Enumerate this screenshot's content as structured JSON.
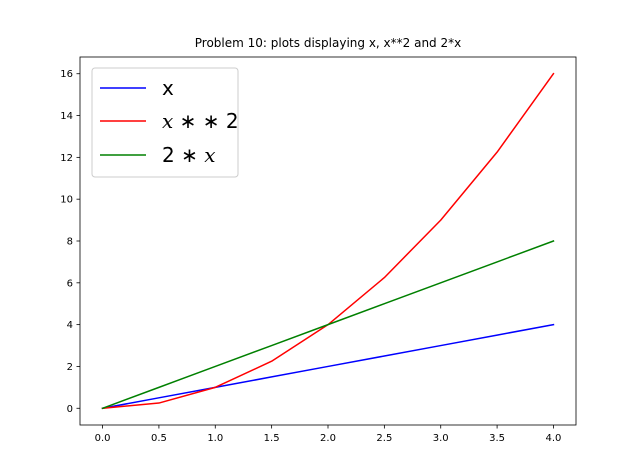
{
  "chart_data": {
    "type": "line",
    "title": "Problem 10: plots displaying x, x**2 and 2*x",
    "xlabel": "",
    "ylabel": "",
    "x": [
      0.0,
      0.5,
      1.0,
      1.5,
      2.0,
      2.5,
      3.0,
      3.5,
      4.0
    ],
    "series": [
      {
        "name": "x",
        "color": "#0000ff",
        "values": [
          0.0,
          0.5,
          1.0,
          1.5,
          2.0,
          2.5,
          3.0,
          3.5,
          4.0
        ]
      },
      {
        "name": "x**2",
        "color": "#ff0000",
        "values": [
          0.0,
          0.25,
          1.0,
          2.25,
          4.0,
          6.25,
          9.0,
          12.25,
          16.0
        ]
      },
      {
        "name": "2*x",
        "color": "#008000",
        "values": [
          0.0,
          1.0,
          2.0,
          3.0,
          4.0,
          5.0,
          6.0,
          7.0,
          8.0
        ]
      }
    ],
    "xlim": [
      -0.2,
      4.2
    ],
    "ylim": [
      -0.8,
      16.8
    ],
    "xticks": [
      0.0,
      0.5,
      1.0,
      1.5,
      2.0,
      2.5,
      3.0,
      3.5,
      4.0
    ],
    "xtick_labels": [
      "0.0",
      "0.5",
      "1.0",
      "1.5",
      "2.0",
      "2.5",
      "3.0",
      "3.5",
      "4.0"
    ],
    "yticks": [
      0,
      2,
      4,
      6,
      8,
      10,
      12,
      14,
      16
    ],
    "ytick_labels": [
      "0",
      "2",
      "4",
      "6",
      "8",
      "10",
      "12",
      "14",
      "16"
    ],
    "grid": false,
    "legend_position": "top-left"
  },
  "legend": {
    "items": [
      {
        "label_parts": [
          "x"
        ]
      },
      {
        "label_parts": [
          "x",
          " ∗ ∗ ",
          "2"
        ]
      },
      {
        "label_parts": [
          "2",
          " ∗ ",
          "x"
        ]
      }
    ]
  }
}
